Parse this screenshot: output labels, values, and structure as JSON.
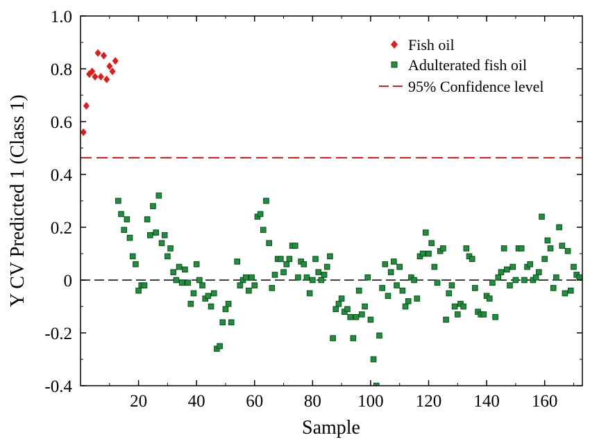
{
  "chart_data": {
    "type": "scatter",
    "title": "",
    "xlabel": "Sample",
    "ylabel": "Y CV Predicted 1 (Class 1)",
    "xlim": [
      0,
      173
    ],
    "ylim": [
      -0.4,
      1.0
    ],
    "x_ticks": [
      20,
      40,
      60,
      80,
      100,
      120,
      140,
      160
    ],
    "y_ticks": [
      1.0,
      0.8,
      0.6,
      0.4,
      0.2,
      0,
      -0.2,
      -0.4
    ],
    "x_tick_labels": [
      "20",
      "40",
      "60",
      "80",
      "100",
      "120",
      "140",
      "160"
    ],
    "y_tick_labels": [
      "1.0",
      "0.8",
      "0.6",
      "0.4",
      "0.2",
      "0",
      "-0.2",
      "-0.4"
    ],
    "grid": false,
    "legend_position": "top-right",
    "confidence_level": 0.463,
    "zero_line": 0,
    "colors": {
      "fish_oil": "#e01b1b",
      "adulterated_fill": "#1e8f3a",
      "adulterated_edge": "#0d4a1d",
      "confidence_line": "#e01b1b",
      "zero_line": "#000000"
    },
    "legend": [
      {
        "label": "Fish oil",
        "marker": "diamond"
      },
      {
        "label": "Adulterated fish oil",
        "marker": "square"
      },
      {
        "label": "95% Confidence level",
        "marker": "dashed-line"
      }
    ],
    "series": [
      {
        "name": "Fish oil",
        "points": [
          [
            1,
            0.56
          ],
          [
            2,
            0.66
          ],
          [
            3,
            0.78
          ],
          [
            4,
            0.79
          ],
          [
            5,
            0.77
          ],
          [
            6,
            0.86
          ],
          [
            7,
            0.77
          ],
          [
            8,
            0.85
          ],
          [
            9,
            0.76
          ],
          [
            10,
            0.81
          ],
          [
            11,
            0.79
          ],
          [
            12,
            0.83
          ]
        ]
      },
      {
        "name": "Adulterated fish oil",
        "points": [
          [
            13,
            0.3
          ],
          [
            14,
            0.25
          ],
          [
            15,
            0.19
          ],
          [
            16,
            0.23
          ],
          [
            17,
            0.16
          ],
          [
            18,
            0.09
          ],
          [
            19,
            0.06
          ],
          [
            20,
            -0.04
          ],
          [
            21,
            -0.02
          ],
          [
            22,
            -0.02
          ],
          [
            23,
            0.23
          ],
          [
            24,
            0.17
          ],
          [
            25,
            0.28
          ],
          [
            26,
            0.18
          ],
          [
            27,
            0.32
          ],
          [
            28,
            0.14
          ],
          [
            29,
            0.17
          ],
          [
            30,
            0.09
          ],
          [
            31,
            0.12
          ],
          [
            32,
            0.03
          ],
          [
            33,
            0.0
          ],
          [
            34,
            0.05
          ],
          [
            35,
            -0.01
          ],
          [
            36,
            0.04
          ],
          [
            37,
            -0.01
          ],
          [
            38,
            -0.09
          ],
          [
            39,
            -0.05
          ],
          [
            40,
            0.06
          ],
          [
            41,
            0.0
          ],
          [
            42,
            -0.02
          ],
          [
            43,
            -0.07
          ],
          [
            44,
            -0.06
          ],
          [
            45,
            -0.1
          ],
          [
            46,
            -0.05
          ],
          [
            47,
            -0.26
          ],
          [
            48,
            -0.25
          ],
          [
            49,
            -0.16
          ],
          [
            50,
            -0.11
          ],
          [
            51,
            -0.09
          ],
          [
            52,
            -0.16
          ],
          [
            54,
            0.07
          ],
          [
            55,
            -0.02
          ],
          [
            56,
            0.0
          ],
          [
            57,
            0.01
          ],
          [
            58,
            -0.04
          ],
          [
            59,
            0.01
          ],
          [
            60,
            -0.02
          ],
          [
            61,
            0.24
          ],
          [
            62,
            0.25
          ],
          [
            63,
            0.19
          ],
          [
            64,
            0.3
          ],
          [
            65,
            0.14
          ],
          [
            66,
            -0.03
          ],
          [
            67,
            0.02
          ],
          [
            68,
            0.08
          ],
          [
            69,
            0.08
          ],
          [
            70,
            0.03
          ],
          [
            71,
            0.06
          ],
          [
            72,
            0.08
          ],
          [
            73,
            0.13
          ],
          [
            74,
            0.13
          ],
          [
            75,
            0.01
          ],
          [
            76,
            0.07
          ],
          [
            77,
            0.06
          ],
          [
            78,
            0.01
          ],
          [
            79,
            -0.05
          ],
          [
            80,
            0.0
          ],
          [
            81,
            0.08
          ],
          [
            82,
            0.03
          ],
          [
            83,
            0.0
          ],
          [
            84,
            0.02
          ],
          [
            85,
            0.05
          ],
          [
            86,
            0.09
          ],
          [
            87,
            -0.22
          ],
          [
            88,
            -0.11
          ],
          [
            89,
            -0.09
          ],
          [
            90,
            -0.07
          ],
          [
            91,
            -0.12
          ],
          [
            92,
            -0.11
          ],
          [
            93,
            -0.14
          ],
          [
            94,
            -0.22
          ],
          [
            95,
            -0.14
          ],
          [
            96,
            -0.04
          ],
          [
            97,
            -0.13
          ],
          [
            98,
            -0.1
          ],
          [
            99,
            0.01
          ],
          [
            100,
            -0.15
          ],
          [
            101,
            -0.3
          ],
          [
            102,
            -0.4
          ],
          [
            103,
            -0.21
          ],
          [
            104,
            -0.03
          ],
          [
            105,
            0.06
          ],
          [
            106,
            -0.06
          ],
          [
            107,
            0.03
          ],
          [
            108,
            0.07
          ],
          [
            109,
            -0.02
          ],
          [
            110,
            0.05
          ],
          [
            111,
            -0.04
          ],
          [
            112,
            -0.1
          ],
          [
            113,
            -0.08
          ],
          [
            114,
            0.01
          ],
          [
            115,
            0.0
          ],
          [
            116,
            -0.07
          ],
          [
            117,
            0.09
          ],
          [
            118,
            0.1
          ],
          [
            119,
            0.18
          ],
          [
            120,
            0.1
          ],
          [
            121,
            0.14
          ],
          [
            122,
            0.05
          ],
          [
            123,
            -0.01
          ],
          [
            124,
            0.11
          ],
          [
            125,
            0.12
          ],
          [
            126,
            -0.15
          ],
          [
            127,
            -0.05
          ],
          [
            128,
            -0.02
          ],
          [
            129,
            -0.1
          ],
          [
            130,
            -0.13
          ],
          [
            131,
            -0.09
          ],
          [
            132,
            -0.1
          ],
          [
            133,
            0.12
          ],
          [
            134,
            0.09
          ],
          [
            135,
            0.08
          ],
          [
            136,
            -0.03
          ],
          [
            137,
            -0.12
          ],
          [
            138,
            -0.13
          ],
          [
            139,
            -0.13
          ],
          [
            140,
            -0.06
          ],
          [
            141,
            -0.07
          ],
          [
            142,
            -0.01
          ],
          [
            143,
            -0.14
          ],
          [
            144,
            0.01
          ],
          [
            145,
            0.03
          ],
          [
            146,
            0.12
          ],
          [
            147,
            0.04
          ],
          [
            148,
            -0.02
          ],
          [
            149,
            0.05
          ],
          [
            150,
            0.0
          ],
          [
            151,
            0.12
          ],
          [
            152,
            0.12
          ],
          [
            153,
            0.0
          ],
          [
            154,
            0.05
          ],
          [
            155,
            0.06
          ],
          [
            156,
            0.0
          ],
          [
            157,
            0.01
          ],
          [
            158,
            0.03
          ],
          [
            159,
            0.24
          ],
          [
            160,
            0.08
          ],
          [
            161,
            0.15
          ],
          [
            162,
            0.12
          ],
          [
            163,
            -0.03
          ],
          [
            164,
            0.01
          ],
          [
            165,
            0.2
          ],
          [
            166,
            0.13
          ],
          [
            167,
            -0.05
          ],
          [
            168,
            0.11
          ],
          [
            169,
            -0.04
          ],
          [
            170,
            0.05
          ],
          [
            171,
            0.02
          ],
          [
            172,
            0.01
          ]
        ]
      }
    ]
  }
}
